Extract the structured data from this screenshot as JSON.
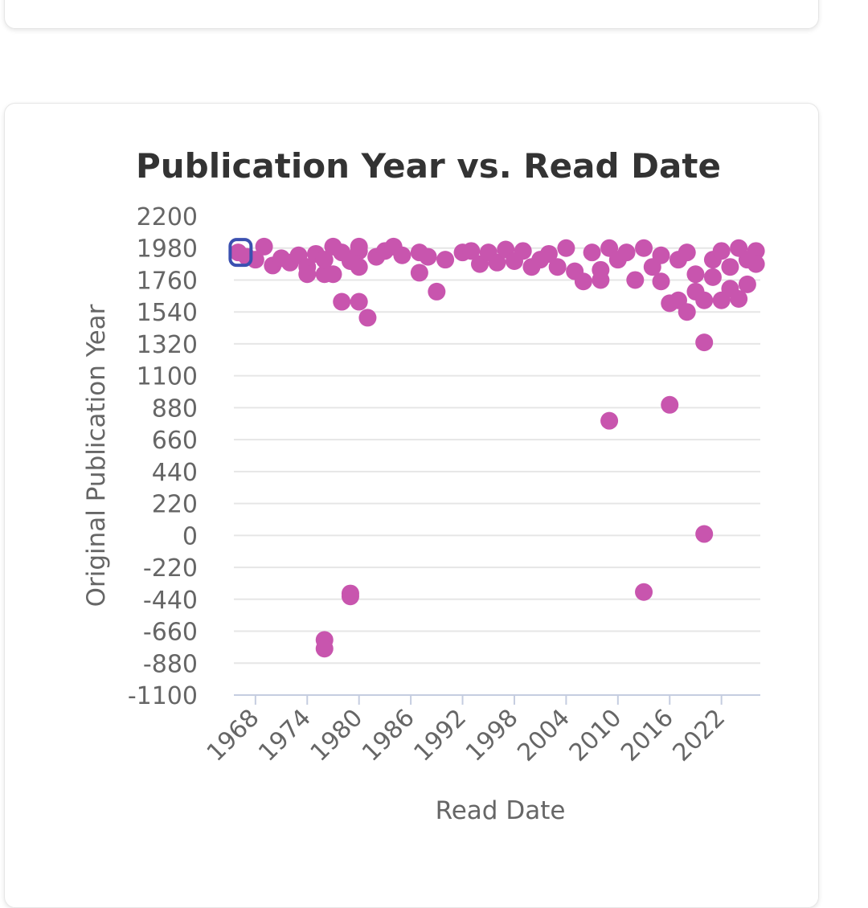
{
  "chart_data": {
    "type": "scatter",
    "title": "Publication Year vs. Read Date",
    "xlabel": "Read Date",
    "ylabel": "Original Publication Year",
    "xlim": [
      1965.5,
      2026.5
    ],
    "ylim": [
      -1100,
      2200
    ],
    "x_ticks": [
      "1968",
      "1974",
      "1980",
      "1986",
      "1992",
      "1998",
      "2004",
      "2010",
      "2016",
      "2022"
    ],
    "x_tick_values": [
      1968,
      1974,
      1980,
      1986,
      1992,
      1998,
      2004,
      2010,
      2016,
      2022
    ],
    "y_ticks": [
      "2200",
      "1980",
      "1760",
      "1540",
      "1320",
      "1100",
      "880",
      "660",
      "440",
      "220",
      "0",
      "-220",
      "-440",
      "-660",
      "-880",
      "-1100"
    ],
    "y_tick_values": [
      2200,
      1980,
      1760,
      1540,
      1320,
      1100,
      880,
      660,
      440,
      220,
      0,
      -220,
      -440,
      -660,
      -880,
      -1100
    ],
    "grid": "horizontal",
    "marker_color": "#c855ae",
    "highlight_color": "#3b50b0",
    "points": [
      [
        1966,
        1950
      ],
      [
        1967,
        1920
      ],
      [
        1968,
        1900
      ],
      [
        1969,
        1990
      ],
      [
        1970,
        1860
      ],
      [
        1971,
        1910
      ],
      [
        1972,
        1880
      ],
      [
        1973,
        1930
      ],
      [
        1974,
        1850
      ],
      [
        1974,
        1800
      ],
      [
        1975,
        1940
      ],
      [
        1976,
        1800
      ],
      [
        1976,
        1900
      ],
      [
        1977,
        1990
      ],
      [
        1977,
        1800
      ],
      [
        1978,
        1950
      ],
      [
        1978,
        1610
      ],
      [
        1979,
        1890
      ],
      [
        1980,
        1960
      ],
      [
        1980,
        1610
      ],
      [
        1980,
        1850
      ],
      [
        1980,
        1990
      ],
      [
        1981,
        1500
      ],
      [
        1982,
        1920
      ],
      [
        1983,
        1960
      ],
      [
        1984,
        1990
      ],
      [
        1985,
        1930
      ],
      [
        1987,
        1950
      ],
      [
        1987,
        1810
      ],
      [
        1988,
        1920
      ],
      [
        1989,
        1680
      ],
      [
        1990,
        1900
      ],
      [
        1992,
        1950
      ],
      [
        1993,
        1960
      ],
      [
        1994,
        1870
      ],
      [
        1995,
        1950
      ],
      [
        1996,
        1880
      ],
      [
        1997,
        1970
      ],
      [
        1998,
        1890
      ],
      [
        1999,
        1960
      ],
      [
        2000,
        1850
      ],
      [
        2001,
        1900
      ],
      [
        2002,
        1940
      ],
      [
        2003,
        1850
      ],
      [
        2004,
        1980
      ],
      [
        2005,
        1820
      ],
      [
        2006,
        1750
      ],
      [
        2007,
        1950
      ],
      [
        2008,
        1760
      ],
      [
        2008,
        1830
      ],
      [
        2009,
        1980
      ],
      [
        2010,
        1900
      ],
      [
        2011,
        1950
      ],
      [
        2012,
        1760
      ],
      [
        2013,
        1980
      ],
      [
        2014,
        1850
      ],
      [
        2015,
        1750
      ],
      [
        2015,
        1930
      ],
      [
        2016,
        1600
      ],
      [
        2017,
        1620
      ],
      [
        2017,
        1900
      ],
      [
        2018,
        1540
      ],
      [
        2018,
        1950
      ],
      [
        2019,
        1680
      ],
      [
        2019,
        1800
      ],
      [
        2020,
        1620
      ],
      [
        2021,
        1900
      ],
      [
        2021,
        1780
      ],
      [
        2022,
        1620
      ],
      [
        2022,
        1960
      ],
      [
        2023,
        1700
      ],
      [
        2023,
        1850
      ],
      [
        2024,
        1980
      ],
      [
        2024,
        1630
      ],
      [
        2025,
        1730
      ],
      [
        2025,
        1900
      ],
      [
        2026,
        1960
      ],
      [
        2026,
        1870
      ],
      [
        1976,
        -720
      ],
      [
        1976,
        -780
      ],
      [
        1979,
        -400
      ],
      [
        1979,
        -420
      ],
      [
        2009,
        790
      ],
      [
        2013,
        -390
      ],
      [
        2016,
        900
      ],
      [
        2020,
        1330
      ],
      [
        2020,
        10
      ]
    ],
    "highlight_points": [
      [
        1966,
        1950
      ]
    ]
  }
}
